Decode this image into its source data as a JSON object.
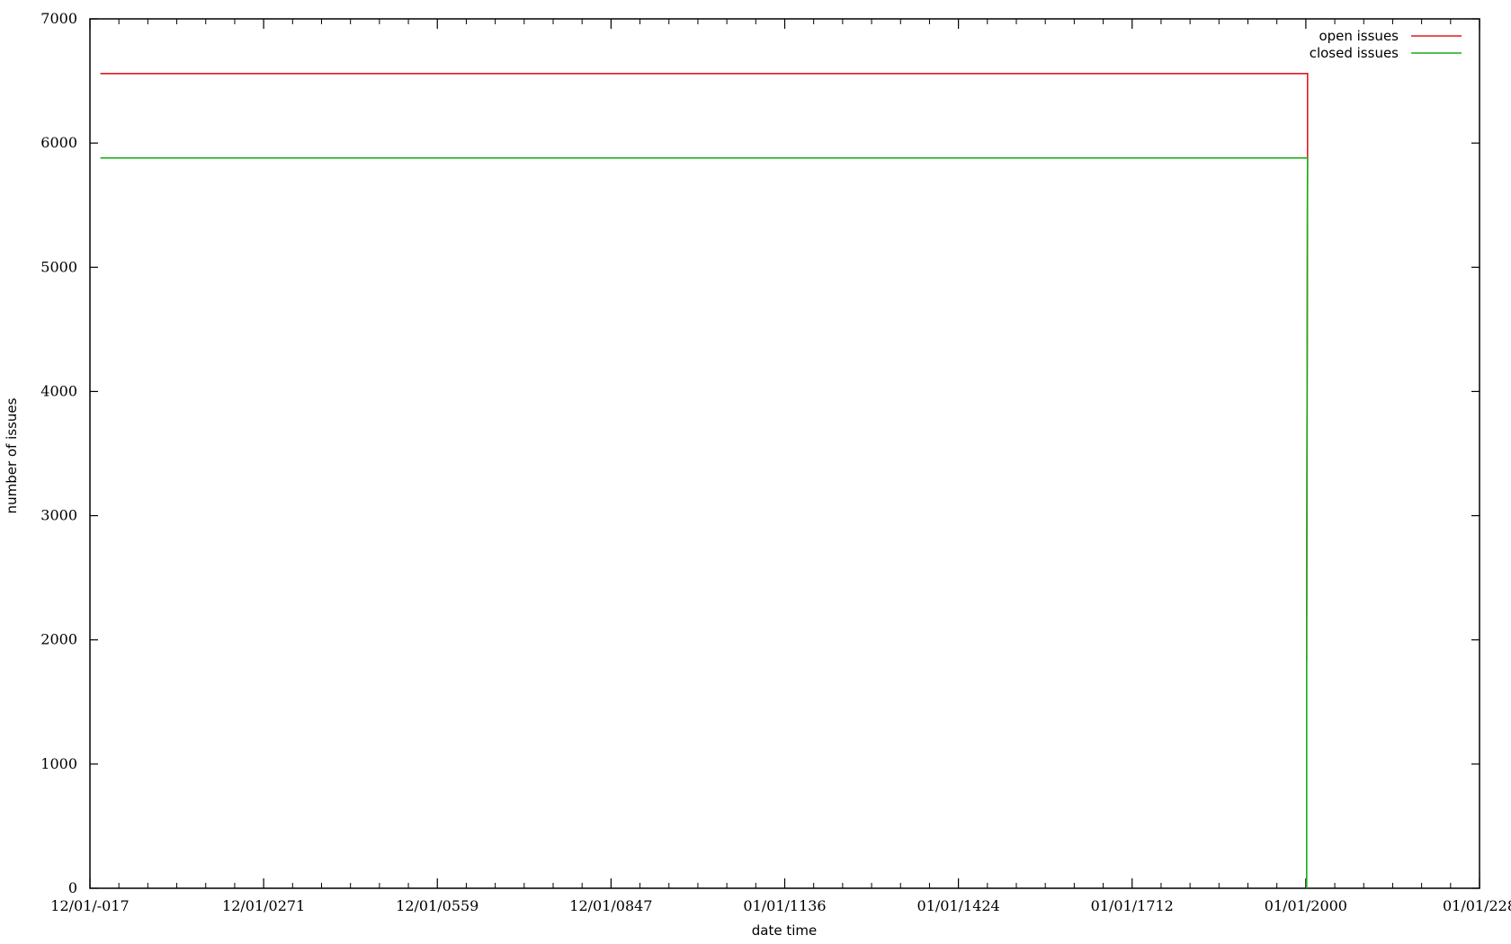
{
  "chart_data": {
    "type": "line",
    "title": "",
    "xlabel": "date time",
    "ylabel": "number of issues",
    "xlim": [
      0,
      8
    ],
    "ylim": [
      0,
      7000
    ],
    "x_tick_labels": [
      "12/01/-017",
      "12/01/0271",
      "12/01/0559",
      "12/01/0847",
      "01/01/1136",
      "01/01/1424",
      "01/01/1712",
      "01/01/2000",
      "01/01/228"
    ],
    "y_ticks": [
      0,
      1000,
      2000,
      3000,
      4000,
      5000,
      6000,
      7000
    ],
    "grid": false,
    "legend_position": "top-right",
    "series": [
      {
        "name": "open issues",
        "color": "#e41a1c",
        "x": [
          0.06,
          7.01,
          7.01,
          7.005,
          7.005
        ],
        "y": [
          6560,
          6560,
          5880,
          2090,
          1830
        ]
      },
      {
        "name": "closed issues",
        "color": "#1aaa1a",
        "x": [
          0.06,
          7.01,
          7.01,
          7.005,
          7.005
        ],
        "y": [
          5880,
          5880,
          5880,
          1950,
          0
        ]
      }
    ]
  }
}
